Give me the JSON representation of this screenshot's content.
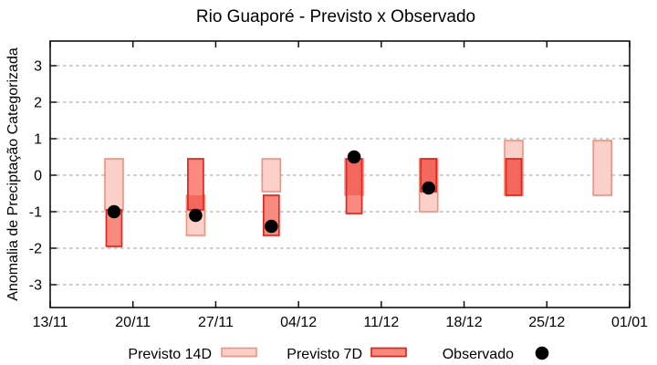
{
  "title": "Rio Guaporé - Previsto x Observado",
  "colors": {
    "p14_fill": "#fbd0c9",
    "p14_border": "#f0907e",
    "p7_fill": "#f98a80",
    "p7_border": "#e3251c",
    "overlap_fill": "#f2685e",
    "observed": "#000000",
    "grid": "#9a9a9a",
    "frame": "#000000"
  },
  "chart_data": {
    "type": "range-bars-with-scatter",
    "title": "Rio Guaporé - Previsto x Observado",
    "xlabel": "",
    "ylabel": "Anomalia de Preciptação Categorizada",
    "ylim": [
      -3.625,
      3.675
    ],
    "xlim_days": [
      0,
      49
    ],
    "grid": "horizontal-dashed",
    "y_ticks": [
      3,
      2,
      1,
      0,
      -1,
      -2,
      -3
    ],
    "x_ticks": [
      {
        "label": "13/11",
        "day": 0
      },
      {
        "label": "20/11",
        "day": 7
      },
      {
        "label": "27/11",
        "day": 14
      },
      {
        "label": "04/12",
        "day": 21
      },
      {
        "label": "11/12",
        "day": 28
      },
      {
        "label": "18/12",
        "day": 35
      },
      {
        "label": "25/12",
        "day": 42
      },
      {
        "label": "01/01",
        "day": 49
      }
    ],
    "legend": {
      "position": "bottom",
      "p14_label": "Previsto 14D",
      "p7_label": "Previsto 7D",
      "obs_label": "Observado"
    },
    "points": [
      {
        "date": "18/11",
        "day": 5.4,
        "previsto_14d": [
          -0.95,
          0.45
        ],
        "previsto_7d": [
          -1.95,
          -0.95
        ],
        "observado": -1.0
      },
      {
        "date": "25/11",
        "day": 12.3,
        "previsto_14d": [
          -1.65,
          -0.55
        ],
        "previsto_7d": [
          -0.95,
          0.45
        ],
        "observado": -1.1
      },
      {
        "date": "02/12",
        "day": 18.7,
        "previsto_14d": [
          -0.45,
          0.45
        ],
        "previsto_7d": [
          -1.65,
          -0.55
        ],
        "observado": -1.4
      },
      {
        "date": "09/12",
        "day": 25.7,
        "previsto_14d": [
          -0.55,
          0.45
        ],
        "previsto_7d": [
          -1.05,
          0.45
        ],
        "observado": 0.5
      },
      {
        "date": "15/12",
        "day": 32.0,
        "previsto_14d": [
          -1.0,
          0.45
        ],
        "previsto_7d": [
          -0.45,
          0.45
        ],
        "observado": -0.35
      },
      {
        "date": "22/12",
        "day": 39.2,
        "previsto_14d": [
          -0.55,
          0.95
        ],
        "previsto_7d": [
          -0.55,
          0.45
        ],
        "observado": null
      },
      {
        "date": "30/12",
        "day": 46.7,
        "previsto_14d": [
          -0.55,
          0.95
        ],
        "previsto_7d": null,
        "observado": null
      }
    ]
  }
}
